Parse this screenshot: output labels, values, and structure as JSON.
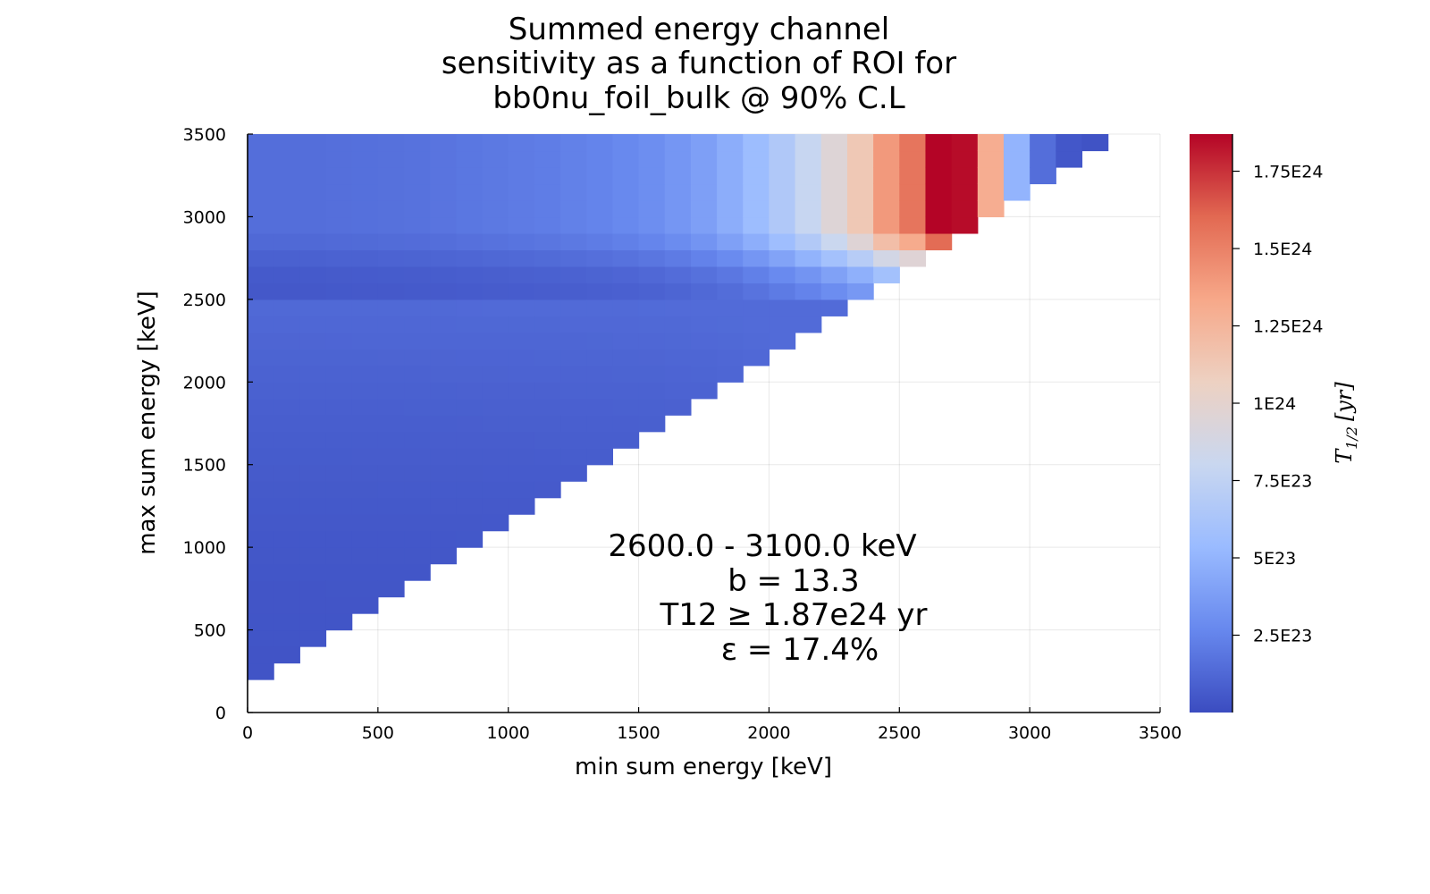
{
  "chart_data": {
    "type": "heatmap",
    "title_lines": [
      "Summed energy channel",
      "sensitivity as a function of ROI for",
      "bb0nu_foil_bulk @ 90% C.L"
    ],
    "xlabel": "min sum energy [keV]",
    "ylabel": "max sum energy [keV]",
    "xlim": [
      0,
      3500
    ],
    "ylim": [
      0,
      3500
    ],
    "xticks": [
      0,
      500,
      1000,
      1500,
      2000,
      2500,
      3000,
      3500
    ],
    "yticks": [
      0,
      500,
      1000,
      1500,
      2000,
      2500,
      3000,
      3500
    ],
    "xtick_labels": [
      "0",
      "500",
      "1000",
      "1500",
      "2000",
      "2500",
      "3000",
      "3500"
    ],
    "ytick_labels": [
      "0",
      "500",
      "1000",
      "1500",
      "2000",
      "2500",
      "3000",
      "3500"
    ],
    "grid": true,
    "bin_width": 100,
    "bin_height": 100,
    "colormap": "coolwarm",
    "colormap_stops": [
      "#3b4cc0",
      "#6788ee",
      "#9abbff",
      "#c9d7f0",
      "#edd1c2",
      "#f7a889",
      "#e26952",
      "#b40426"
    ],
    "color_range": [
      0,
      1.87e+24
    ],
    "top_row_values": [
      1.5e+23,
      1.5e+23,
      1.5e+23,
      1.55e+23,
      1.6e+23,
      1.65e+23,
      1.7e+23,
      1.8e+23,
      1.9e+23,
      2e+23,
      2.1e+23,
      2.2e+23,
      2.35e+23,
      2.5e+23,
      2.7e+23,
      3e+23,
      3.4e+23,
      3.9e+23,
      4.6e+23,
      5.5e+23,
      6.6e+23,
      7.9e+23,
      9.5e+23,
      1.13e+24,
      1.4e+24,
      1.55e+24,
      1.87e+24,
      1.85e+24,
      1.3e+24,
      5e+23,
      1.5e+23,
      5e+22,
      3e+22
    ],
    "max_value": 1.87e+24,
    "best_roi": [
      2600,
      3100
    ],
    "colorbar": {
      "label": "T_{1/2} [yr]",
      "label_main": "T",
      "label_sub": "1/2",
      "label_unit": "[yr]",
      "ticks": [
        2.5e+23,
        5e+23,
        7.5e+23,
        1e+24,
        1.25e+24,
        1.5e+24,
        1.75e+24
      ],
      "tick_labels": [
        "2.5E23",
        "5E23",
        "7.5E23",
        "1E24",
        "1.25E24",
        "1.5E24",
        "1.75E24"
      ]
    },
    "annotation": {
      "lines": [
        "2600.0 - 3100.0 keV",
        "b  = 13.3",
        "T12 ≥  1.87e24 yr",
        "ε = 17.4%"
      ]
    }
  }
}
